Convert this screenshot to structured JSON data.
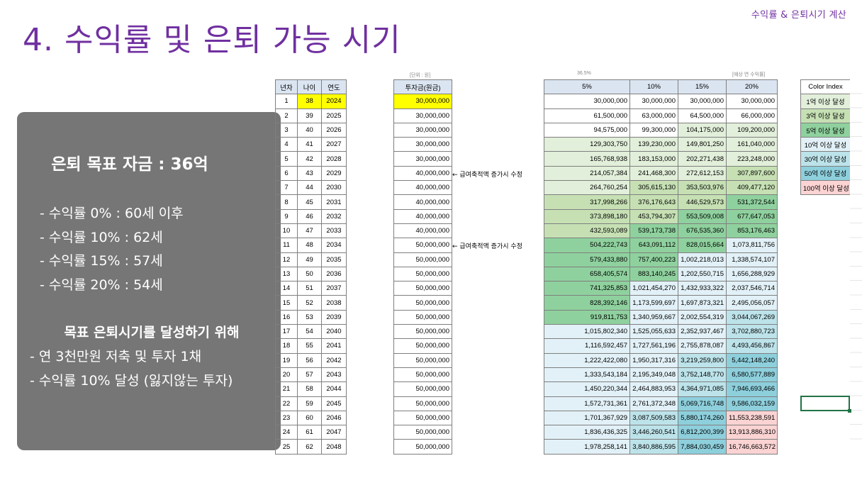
{
  "header": {
    "top_right": "수익률 & 은퇴시기 계산",
    "title": "4. 수익률 및 은퇴 가능 시기"
  },
  "summary": {
    "goal": "은퇴 목표 자금 : 36억",
    "returns": [
      "- 수익률    0% : 60세 이후",
      "- 수익률 10% : 62세",
      "- 수익률 15% : 57세",
      "- 수익률 20% : 54세"
    ],
    "subtitle": "목표 은퇴시기를 달성하기 위해",
    "actions": [
      "- 연 3천만원 저축 및 투자 1채",
      "- 수익률 10% 달성 (잃지않는 투자)"
    ]
  },
  "table_left": {
    "headers": [
      "년차",
      "나이",
      "연도"
    ],
    "rows": [
      [
        "1",
        "38",
        "2024"
      ],
      [
        "2",
        "39",
        "2025"
      ],
      [
        "3",
        "40",
        "2026"
      ],
      [
        "4",
        "41",
        "2027"
      ],
      [
        "5",
        "42",
        "2028"
      ],
      [
        "6",
        "43",
        "2029"
      ],
      [
        "7",
        "44",
        "2030"
      ],
      [
        "8",
        "45",
        "2031"
      ],
      [
        "9",
        "46",
        "2032"
      ],
      [
        "10",
        "47",
        "2033"
      ],
      [
        "11",
        "48",
        "2034"
      ],
      [
        "12",
        "49",
        "2035"
      ],
      [
        "13",
        "50",
        "2036"
      ],
      [
        "14",
        "51",
        "2037"
      ],
      [
        "15",
        "52",
        "2038"
      ],
      [
        "16",
        "53",
        "2039"
      ],
      [
        "17",
        "54",
        "2040"
      ],
      [
        "18",
        "55",
        "2041"
      ],
      [
        "19",
        "56",
        "2042"
      ],
      [
        "20",
        "57",
        "2043"
      ],
      [
        "21",
        "58",
        "2044"
      ],
      [
        "22",
        "59",
        "2045"
      ],
      [
        "23",
        "60",
        "2046"
      ],
      [
        "24",
        "61",
        "2047"
      ],
      [
        "25",
        "62",
        "2048"
      ]
    ]
  },
  "table_invest": {
    "unit_label": "[단위 : 원]",
    "header": "투자금(원금)",
    "values": [
      "30,000,000",
      "30,000,000",
      "30,000,000",
      "30,000,000",
      "30,000,000",
      "40,000,000",
      "40,000,000",
      "40,000,000",
      "40,000,000",
      "40,000,000",
      "50,000,000",
      "50,000,000",
      "50,000,000",
      "50,000,000",
      "50,000,000",
      "50,000,000",
      "50,000,000",
      "50,000,000",
      "50,000,000",
      "50,000,000",
      "50,000,000",
      "50,000,000",
      "50,000,000",
      "50,000,000",
      "50,000,000"
    ],
    "notes": [
      {
        "row": 6,
        "text": "← 급여축적액 증가시 수정"
      },
      {
        "row": 11,
        "text": "← 급여축적액 증가시 수정"
      }
    ]
  },
  "table_returns": {
    "top_label_left": "36.5%",
    "top_label_right": "[예상 연 수익률]",
    "headers": [
      "5%",
      "10%",
      "15%",
      "20%"
    ],
    "rows": [
      [
        "30,000,000",
        "30,000,000",
        "30,000,000",
        "30,000,000"
      ],
      [
        "61,500,000",
        "63,000,000",
        "64,500,000",
        "66,000,000"
      ],
      [
        "94,575,000",
        "99,300,000",
        "104,175,000",
        "109,200,000"
      ],
      [
        "129,303,750",
        "139,230,000",
        "149,801,250",
        "161,040,000"
      ],
      [
        "165,768,938",
        "183,153,000",
        "202,271,438",
        "223,248,000"
      ],
      [
        "214,057,384",
        "241,468,300",
        "272,612,153",
        "307,897,600"
      ],
      [
        "264,760,254",
        "305,615,130",
        "353,503,976",
        "409,477,120"
      ],
      [
        "317,998,266",
        "376,176,643",
        "446,529,573",
        "531,372,544"
      ],
      [
        "373,898,180",
        "453,794,307",
        "553,509,008",
        "677,647,053"
      ],
      [
        "432,593,089",
        "539,173,738",
        "676,535,360",
        "853,176,463"
      ],
      [
        "504,222,743",
        "643,091,112",
        "828,015,664",
        "1,073,811,756"
      ],
      [
        "579,433,880",
        "757,400,223",
        "1,002,218,013",
        "1,338,574,107"
      ],
      [
        "658,405,574",
        "883,140,245",
        "1,202,550,715",
        "1,656,288,929"
      ],
      [
        "741,325,853",
        "1,021,454,270",
        "1,432,933,322",
        "2,037,546,714"
      ],
      [
        "828,392,146",
        "1,173,599,697",
        "1,697,873,321",
        "2,495,056,057"
      ],
      [
        "919,811,753",
        "1,340,959,667",
        "2,002,554,319",
        "3,044,067,269"
      ],
      [
        "1,015,802,340",
        "1,525,055,633",
        "2,352,937,467",
        "3,702,880,723"
      ],
      [
        "1,116,592,457",
        "1,727,561,196",
        "2,755,878,087",
        "4,493,456,867"
      ],
      [
        "1,222,422,080",
        "1,950,317,316",
        "3,219,259,800",
        "5,442,148,240"
      ],
      [
        "1,333,543,184",
        "2,195,349,048",
        "3,752,148,770",
        "6,580,577,889"
      ],
      [
        "1,450,220,344",
        "2,464,883,953",
        "4,364,971,085",
        "7,946,693,466"
      ],
      [
        "1,572,731,361",
        "2,761,372,348",
        "5,069,716,748",
        "9,586,032,159"
      ],
      [
        "1,701,367,929",
        "3,087,509,583",
        "5,880,174,260",
        "11,553,238,591"
      ],
      [
        "1,836,436,325",
        "3,446,260,541",
        "6,812,200,399",
        "13,913,886,310"
      ],
      [
        "1,978,258,141",
        "3,840,886,595",
        "7,884,030,459",
        "16,746,663,572"
      ]
    ]
  },
  "color_index": {
    "header": "Color Index",
    "items": [
      {
        "label": "1억 이상 달성",
        "color": "#e2efda"
      },
      {
        "label": "3억 이상 달성",
        "color": "#c6e0b4"
      },
      {
        "label": "5억 이상 달성",
        "color": "#8fd19e"
      },
      {
        "label": "10억 이상 달성",
        "color": "#e2f1f7"
      },
      {
        "label": "30억 이상 달성",
        "color": "#bde3ea"
      },
      {
        "label": "50억 이상 달성",
        "color": "#8ecfdc"
      },
      {
        "label": "100억 이상 달성",
        "color": "#fbd3d3"
      }
    ]
  }
}
